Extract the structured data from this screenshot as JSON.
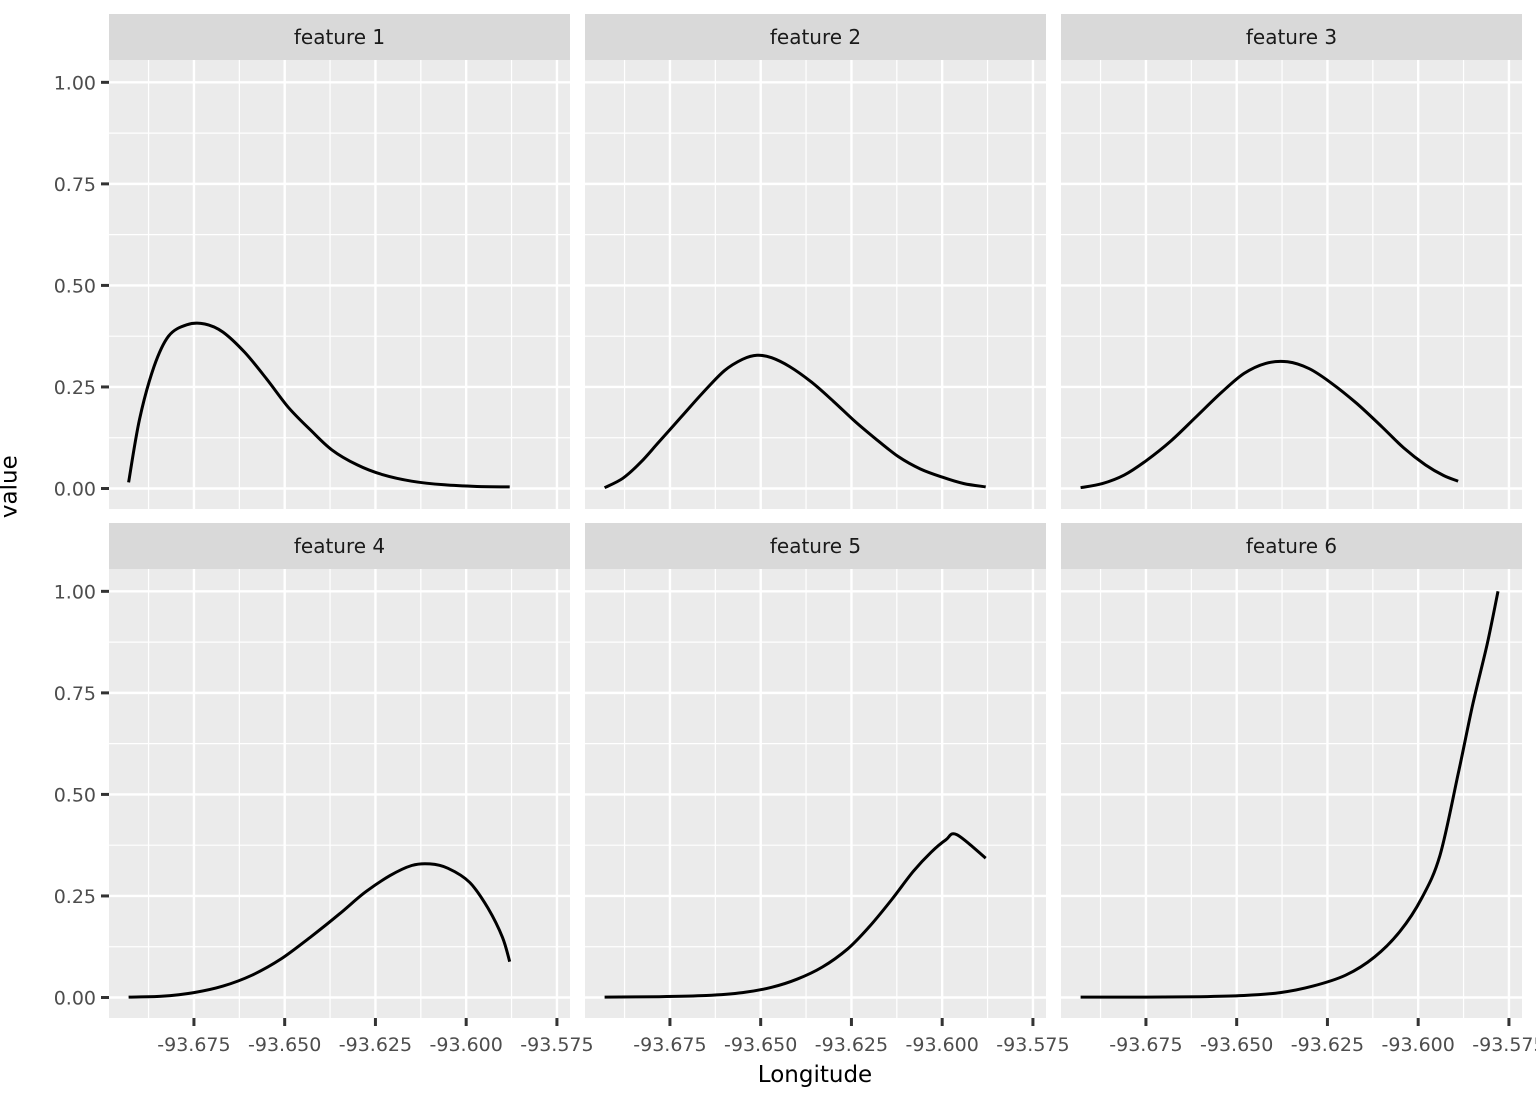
{
  "figure": {
    "xlabel": "Longitude",
    "ylabel": "value"
  },
  "chart_data": {
    "type": "line",
    "title": "",
    "facet_variable": "feature",
    "layout": {
      "rows": 2,
      "cols": 3,
      "legend": "none",
      "grid": "major+minor"
    },
    "x_axis": {
      "label": "Longitude",
      "range": [
        -93.6984,
        -93.5714
      ],
      "tick_values": [
        -93.675,
        -93.65,
        -93.625,
        -93.6,
        -93.575
      ],
      "tick_labels": [
        "-93.675",
        "-93.650",
        "-93.625",
        "-93.600",
        "-93.575"
      ],
      "minor_tick_values": [
        -93.6875,
        -93.6625,
        -93.6375,
        -93.6125,
        -93.5875
      ]
    },
    "y_axis": {
      "label": "value",
      "range": [
        -0.0505,
        1.055
      ],
      "tick_values": [
        0,
        0.25,
        0.5,
        0.75,
        1
      ],
      "tick_labels": [
        "0.00",
        "0.25",
        "0.50",
        "0.75",
        "1.00"
      ],
      "minor_tick_values": [
        0.125,
        0.375,
        0.625,
        0.875
      ]
    },
    "series": [
      {
        "name": "feature 1",
        "points": [
          [
            -93.693,
            0.015
          ],
          [
            -93.69,
            0.17
          ],
          [
            -93.686,
            0.3
          ],
          [
            -93.682,
            0.375
          ],
          [
            -93.677,
            0.403
          ],
          [
            -93.672,
            0.405
          ],
          [
            -93.667,
            0.385
          ],
          [
            -93.661,
            0.335
          ],
          [
            -93.655,
            0.27
          ],
          [
            -93.649,
            0.2
          ],
          [
            -93.643,
            0.145
          ],
          [
            -93.637,
            0.095
          ],
          [
            -93.63,
            0.058
          ],
          [
            -93.623,
            0.034
          ],
          [
            -93.615,
            0.018
          ],
          [
            -93.606,
            0.009
          ],
          [
            -93.597,
            0.005
          ],
          [
            -93.588,
            0.004
          ]
        ]
      },
      {
        "name": "feature 2",
        "points": [
          [
            -93.693,
            0.002
          ],
          [
            -93.688,
            0.025
          ],
          [
            -93.683,
            0.065
          ],
          [
            -93.678,
            0.115
          ],
          [
            -93.672,
            0.175
          ],
          [
            -93.666,
            0.235
          ],
          [
            -93.66,
            0.29
          ],
          [
            -93.655,
            0.318
          ],
          [
            -93.651,
            0.328
          ],
          [
            -93.647,
            0.322
          ],
          [
            -93.642,
            0.3
          ],
          [
            -93.636,
            0.262
          ],
          [
            -93.63,
            0.215
          ],
          [
            -93.624,
            0.165
          ],
          [
            -93.618,
            0.12
          ],
          [
            -93.612,
            0.078
          ],
          [
            -93.606,
            0.048
          ],
          [
            -93.6,
            0.028
          ],
          [
            -93.594,
            0.012
          ],
          [
            -93.588,
            0.004
          ]
        ]
      },
      {
        "name": "feature 3",
        "points": [
          [
            -93.693,
            0.002
          ],
          [
            -93.687,
            0.012
          ],
          [
            -93.681,
            0.033
          ],
          [
            -93.675,
            0.068
          ],
          [
            -93.668,
            0.118
          ],
          [
            -93.661,
            0.178
          ],
          [
            -93.654,
            0.238
          ],
          [
            -93.648,
            0.283
          ],
          [
            -93.642,
            0.308
          ],
          [
            -93.636,
            0.312
          ],
          [
            -93.63,
            0.295
          ],
          [
            -93.624,
            0.26
          ],
          [
            -93.617,
            0.21
          ],
          [
            -93.61,
            0.152
          ],
          [
            -93.604,
            0.1
          ],
          [
            -93.598,
            0.058
          ],
          [
            -93.593,
            0.032
          ],
          [
            -93.589,
            0.018
          ]
        ]
      },
      {
        "name": "feature 4",
        "points": [
          [
            -93.693,
            0.001
          ],
          [
            -93.684,
            0.003
          ],
          [
            -93.675,
            0.012
          ],
          [
            -93.667,
            0.028
          ],
          [
            -93.659,
            0.055
          ],
          [
            -93.651,
            0.095
          ],
          [
            -93.643,
            0.148
          ],
          [
            -93.635,
            0.205
          ],
          [
            -93.628,
            0.258
          ],
          [
            -93.621,
            0.3
          ],
          [
            -93.615,
            0.325
          ],
          [
            -93.61,
            0.329
          ],
          [
            -93.605,
            0.318
          ],
          [
            -93.599,
            0.283
          ],
          [
            -93.594,
            0.22
          ],
          [
            -93.59,
            0.148
          ],
          [
            -93.588,
            0.088
          ]
        ]
      },
      {
        "name": "feature 5",
        "points": [
          [
            -93.693,
            0.001
          ],
          [
            -93.678,
            0.002
          ],
          [
            -93.665,
            0.005
          ],
          [
            -93.655,
            0.012
          ],
          [
            -93.647,
            0.025
          ],
          [
            -93.64,
            0.045
          ],
          [
            -93.633,
            0.075
          ],
          [
            -93.626,
            0.12
          ],
          [
            -93.62,
            0.175
          ],
          [
            -93.614,
            0.24
          ],
          [
            -93.608,
            0.31
          ],
          [
            -93.603,
            0.358
          ],
          [
            -93.599,
            0.388
          ],
          [
            -93.596,
            0.401
          ],
          [
            -93.588,
            0.343
          ]
        ]
      },
      {
        "name": "feature 6",
        "points": [
          [
            -93.693,
            0.001
          ],
          [
            -93.675,
            0.001
          ],
          [
            -93.66,
            0.002
          ],
          [
            -93.648,
            0.005
          ],
          [
            -93.638,
            0.012
          ],
          [
            -93.629,
            0.028
          ],
          [
            -93.62,
            0.055
          ],
          [
            -93.612,
            0.1
          ],
          [
            -93.605,
            0.163
          ],
          [
            -93.599,
            0.245
          ],
          [
            -93.594,
            0.35
          ],
          [
            -93.589,
            0.55
          ],
          [
            -93.585,
            0.72
          ],
          [
            -93.581,
            0.87
          ],
          [
            -93.578,
            1.0
          ]
        ]
      }
    ],
    "colors": {
      "page_background": "#FFFFFF",
      "panel_background": "#EBEBEB",
      "strip_background": "#D9D9D9",
      "gridline": "#FFFFFF",
      "line": "#000000",
      "axis_text": "#4D4D4D",
      "strip_text": "#1A1A1A",
      "axis_title": "#000000",
      "tick_mark": "#333333"
    }
  }
}
